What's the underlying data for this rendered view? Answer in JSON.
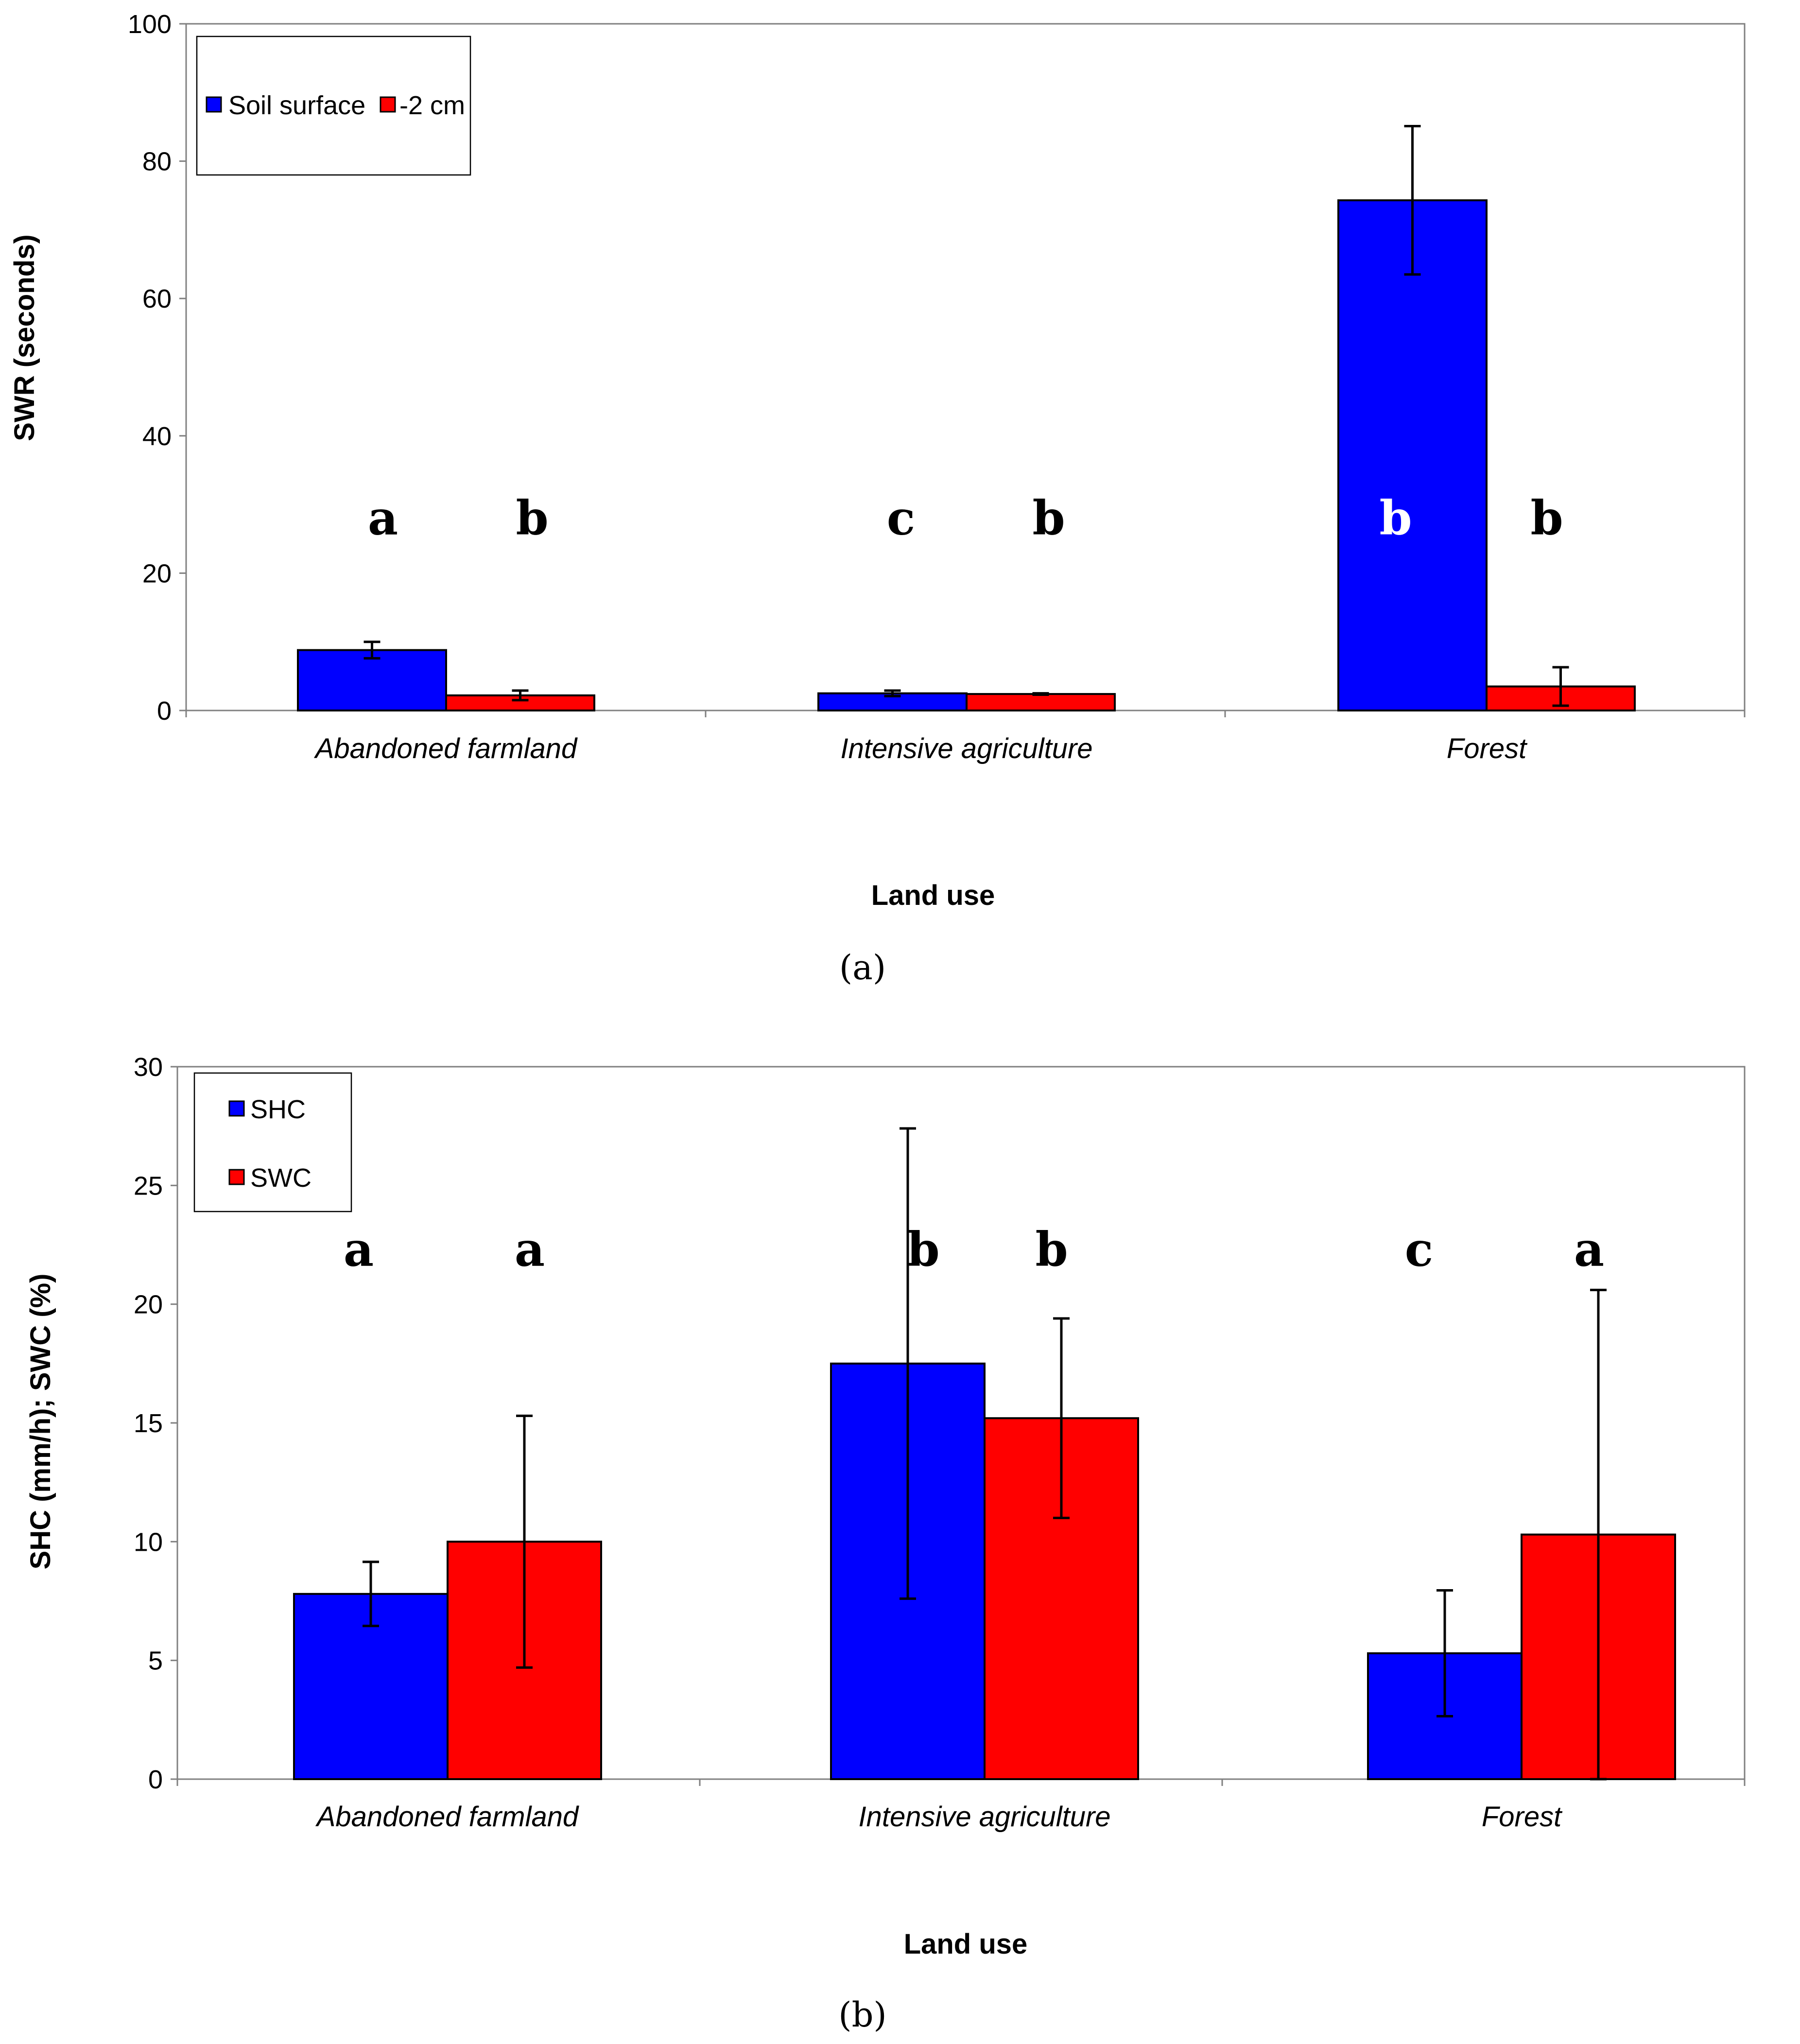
{
  "colors": {
    "series1": "#0000FF",
    "series2": "#FF0000",
    "axis": "#808080",
    "text": "#000000"
  },
  "chart_data": [
    {
      "type": "bar",
      "panel_label": "(a)",
      "categories": [
        "Abandoned farmland",
        "Intensive agriculture",
        "Forest"
      ],
      "series": [
        {
          "name": "Soil surface",
          "values": [
            8.8,
            2.5,
            74.3
          ],
          "errors": [
            1.2,
            0.4,
            10.8
          ],
          "letters": [
            "a",
            "c",
            "b"
          ]
        },
        {
          "name": "-2 cm",
          "values": [
            2.2,
            2.4,
            3.5
          ],
          "errors": [
            0.7,
            0.1,
            2.8
          ],
          "letters": [
            "b",
            "b",
            "b"
          ]
        }
      ],
      "xlabel": "Land use",
      "ylabel": "SWR (seconds)",
      "ylim": [
        0,
        100
      ],
      "yticks": [
        0,
        20,
        40,
        60,
        80,
        100
      ],
      "letter_level": 28,
      "legend_position": "top-left"
    },
    {
      "type": "bar",
      "panel_label": "(b)",
      "categories": [
        "Abandoned farmland",
        "Intensive agriculture",
        "Forest"
      ],
      "series": [
        {
          "name": "SHC",
          "values": [
            7.8,
            17.5,
            5.3
          ],
          "errors": [
            1.35,
            9.9,
            2.65
          ],
          "letters": [
            "a",
            "b",
            "c"
          ]
        },
        {
          "name": "SWC",
          "values": [
            10.0,
            15.2,
            10.3
          ],
          "errors": [
            5.3,
            4.2,
            10.3
          ],
          "letters": [
            "a",
            "b",
            "a"
          ]
        }
      ],
      "xlabel": "Land use",
      "ylabel": "SHC (mm/h); SWC (%)",
      "ylim": [
        0,
        30
      ],
      "yticks": [
        0,
        5,
        10,
        15,
        20,
        25,
        30
      ],
      "letter_level": 22.3,
      "legend_position": "top-left"
    }
  ]
}
